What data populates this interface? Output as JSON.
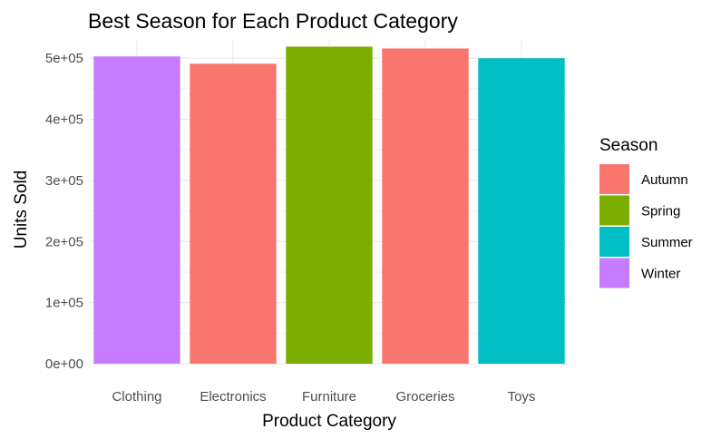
{
  "chart_data": {
    "type": "bar",
    "title": "Best Season for Each Product Category",
    "xlabel": "Product Category",
    "ylabel": "Units Sold",
    "categories": [
      "Clothing",
      "Electronics",
      "Furniture",
      "Groceries",
      "Toys"
    ],
    "values": [
      503000,
      491000,
      519000,
      516000,
      500000
    ],
    "season_of_category": [
      "Winter",
      "Autumn",
      "Spring",
      "Autumn",
      "Summer"
    ],
    "ylim": [
      0,
      530000
    ],
    "yticks": [
      0,
      100000,
      200000,
      300000,
      400000,
      500000
    ],
    "ytick_labels": [
      "0e+00",
      "1e+05",
      "2e+05",
      "3e+05",
      "4e+05",
      "5e+05"
    ],
    "grid": true,
    "legend": {
      "title": "Season",
      "position": "right",
      "entries": [
        {
          "label": "Autumn",
          "color": "#F8766D"
        },
        {
          "label": "Spring",
          "color": "#7CAE00"
        },
        {
          "label": "Summer",
          "color": "#00BFC4"
        },
        {
          "label": "Winter",
          "color": "#C77CFF"
        }
      ]
    }
  }
}
